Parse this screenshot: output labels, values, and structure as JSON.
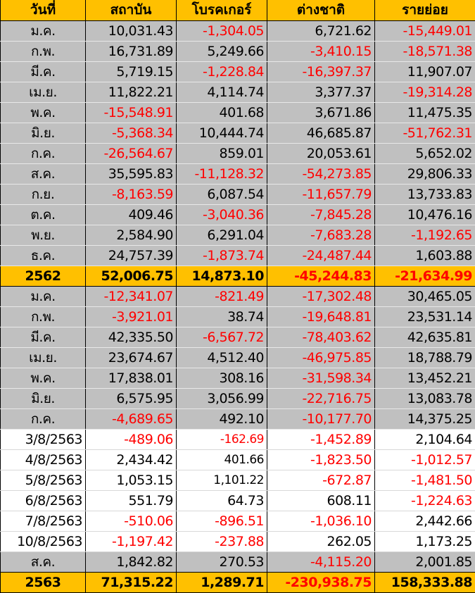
{
  "colors": {
    "header_bg": "#ffc000",
    "month_bg": "#c0c0c0",
    "daily_bg": "#ffffff",
    "negative": "#ff0000"
  },
  "headers": [
    "วันที่",
    "สถาบัน",
    "โบรคเกอร์",
    "ต่างชาติ",
    "รายย่อย"
  ],
  "rows": [
    {
      "type": "month",
      "label": "ม.ค.",
      "values": [
        "10,031.43",
        "-1,304.05",
        "6,721.62",
        "-15,449.01"
      ]
    },
    {
      "type": "month",
      "label": "ก.พ.",
      "values": [
        "16,731.89",
        "5,249.66",
        "-3,410.15",
        "-18,571.38"
      ]
    },
    {
      "type": "month",
      "label": "มี.ค.",
      "values": [
        "5,719.15",
        "-1,228.84",
        "-16,397.37",
        "11,907.07"
      ]
    },
    {
      "type": "month",
      "label": "เม.ย.",
      "values": [
        "11,822.21",
        "4,114.74",
        "3,377.37",
        "-19,314.28"
      ]
    },
    {
      "type": "month",
      "label": "พ.ค.",
      "values": [
        "-15,548.91",
        "401.68",
        "3,671.86",
        "11,475.35"
      ]
    },
    {
      "type": "month",
      "label": "มิ.ย.",
      "values": [
        "-5,368.34",
        "10,444.74",
        "46,685.87",
        "-51,762.31"
      ]
    },
    {
      "type": "month",
      "label": "ก.ค.",
      "values": [
        "-26,564.67",
        "859.01",
        "20,053.61",
        "5,652.02"
      ]
    },
    {
      "type": "month",
      "label": "ส.ค.",
      "values": [
        "35,595.83",
        "-11,128.32",
        "-54,273.85",
        "29,806.33"
      ]
    },
    {
      "type": "month",
      "label": "ก.ย.",
      "values": [
        "-8,163.59",
        "6,087.54",
        "-11,657.79",
        "13,733.83"
      ]
    },
    {
      "type": "month",
      "label": "ต.ค.",
      "values": [
        "409.46",
        "-3,040.36",
        "-7,845.28",
        "10,476.16"
      ]
    },
    {
      "type": "month",
      "label": "พ.ย.",
      "values": [
        "2,584.90",
        "6,291.04",
        "-7,683.28",
        "-1,192.65"
      ]
    },
    {
      "type": "month",
      "label": "ธ.ค.",
      "values": [
        "24,757.39",
        "-1,873.74",
        "-24,487.44",
        "1,603.88"
      ]
    },
    {
      "type": "total",
      "label": "2562",
      "values": [
        "52,006.75",
        "14,873.10",
        "-45,244.83",
        "-21,634.99"
      ]
    },
    {
      "type": "month",
      "label": "ม.ค.",
      "values": [
        "-12,341.07",
        "-821.49",
        "-17,302.48",
        "30,465.05"
      ]
    },
    {
      "type": "month",
      "label": "ก.พ.",
      "values": [
        "-3,921.01",
        "38.74",
        "-19,648.81",
        "23,531.14"
      ]
    },
    {
      "type": "month",
      "label": "มี.ค.",
      "values": [
        "42,335.50",
        "-6,567.72",
        "-78,403.62",
        "42,635.81"
      ]
    },
    {
      "type": "month",
      "label": "เม.ย.",
      "values": [
        "23,674.67",
        "4,512.40",
        "-46,975.85",
        "18,788.79"
      ]
    },
    {
      "type": "month",
      "label": "พ.ค.",
      "values": [
        "17,838.01",
        "308.16",
        "-31,598.34",
        "13,452.21"
      ]
    },
    {
      "type": "month",
      "label": "มิ.ย.",
      "values": [
        "6,575.95",
        "3,056.99",
        "-22,716.75",
        "13,083.78"
      ]
    },
    {
      "type": "month",
      "label": "ก.ค.",
      "values": [
        "-4,689.65",
        "492.10",
        "-10,177.70",
        "14,375.25"
      ]
    },
    {
      "type": "daily",
      "label": "3/8/2563",
      "values": [
        "-489.06",
        "-162.69",
        "-1,452.89",
        "2,104.64"
      ]
    },
    {
      "type": "daily",
      "label": "4/8/2563",
      "values": [
        "2,434.42",
        "401.66",
        "-1,823.50",
        "-1,012.57"
      ]
    },
    {
      "type": "daily",
      "label": "5/8/2563",
      "values": [
        "1,053.15",
        "1,101.22",
        "-672.87",
        "-1,481.50"
      ]
    },
    {
      "type": "daily",
      "label": "6/8/2563",
      "values": [
        "551.79",
        "64.73",
        "608.11",
        "-1,224.63"
      ]
    },
    {
      "type": "daily",
      "label": "7/8/2563",
      "values": [
        "-510.06",
        "-896.51",
        "-1,036.10",
        "2,442.66"
      ]
    },
    {
      "type": "daily",
      "label": "10/8/2563",
      "values": [
        "-1,197.42",
        "-237.88",
        "262.05",
        "1,173.25"
      ]
    },
    {
      "type": "sub",
      "label": "ส.ค.",
      "values": [
        "1,842.82",
        "270.53",
        "-4,115.20",
        "2,001.85"
      ]
    },
    {
      "type": "total",
      "label": "2563",
      "values": [
        "71,315.22",
        "1,289.71",
        "-230,938.75",
        "158,333.88"
      ]
    }
  ]
}
